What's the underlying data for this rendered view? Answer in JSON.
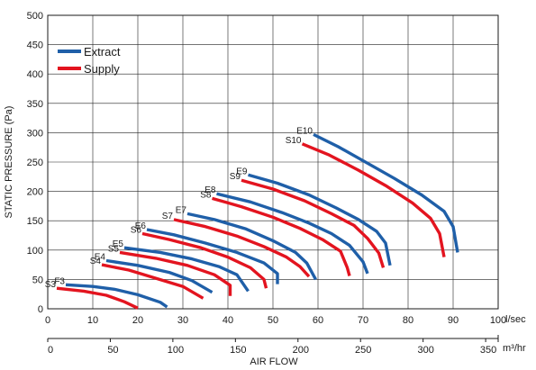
{
  "chart_data": {
    "type": "line",
    "ylabel": "STATIC PRESSURE (Pa)",
    "xlabel": "AIR FLOW",
    "x_unit_primary": "l/sec",
    "x_unit_secondary": "m³/hr",
    "xlim": [
      0,
      100
    ],
    "ylim": [
      0,
      500
    ],
    "secondary_xlim": [
      0,
      360
    ],
    "x_ticks": [
      "0",
      "10",
      "20",
      "30",
      "40",
      "50",
      "60",
      "70",
      "80",
      "90",
      "100"
    ],
    "y_ticks": [
      "0",
      "50",
      "100",
      "150",
      "200",
      "250",
      "300",
      "350",
      "400",
      "450",
      "500"
    ],
    "secondary_ticks": [
      "0",
      "50",
      "100",
      "150",
      "200",
      "250",
      "300",
      "350"
    ],
    "grid": true,
    "legend_position": "top-left",
    "legend": [
      {
        "name": "Extract",
        "color": "#1f5fa8"
      },
      {
        "name": "Supply",
        "color": "#e3141f"
      }
    ],
    "series": [
      {
        "name": "F3",
        "kind": "Extract",
        "points": [
          [
            4,
            41
          ],
          [
            10,
            38
          ],
          [
            15,
            33
          ],
          [
            20,
            24
          ],
          [
            25,
            11
          ],
          [
            26.5,
            3
          ]
        ]
      },
      {
        "name": "S3",
        "kind": "Supply",
        "points": [
          [
            2,
            35
          ],
          [
            8,
            30
          ],
          [
            13,
            23
          ],
          [
            17,
            12
          ],
          [
            20,
            1
          ]
        ]
      },
      {
        "name": "E4",
        "kind": "Extract",
        "points": [
          [
            13,
            82
          ],
          [
            20,
            74
          ],
          [
            27,
            62
          ],
          [
            32,
            48
          ],
          [
            36.5,
            28
          ]
        ]
      },
      {
        "name": "S4",
        "kind": "Supply",
        "points": [
          [
            12,
            75
          ],
          [
            18,
            66
          ],
          [
            24,
            52
          ],
          [
            30,
            38
          ],
          [
            34.5,
            18
          ]
        ]
      },
      {
        "name": "E5",
        "kind": "Extract",
        "points": [
          [
            17,
            104
          ],
          [
            25,
            96
          ],
          [
            32,
            85
          ],
          [
            38,
            72
          ],
          [
            42,
            58
          ],
          [
            44.5,
            30
          ]
        ]
      },
      {
        "name": "S5",
        "kind": "Supply",
        "points": [
          [
            16,
            96
          ],
          [
            24,
            86
          ],
          [
            31,
            74
          ],
          [
            37,
            58
          ],
          [
            40.5,
            40
          ],
          [
            40.5,
            22
          ]
        ]
      },
      {
        "name": "E6",
        "kind": "Extract",
        "points": [
          [
            22,
            135
          ],
          [
            28,
            126
          ],
          [
            35,
            112
          ],
          [
            42,
            96
          ],
          [
            48,
            78
          ],
          [
            51,
            60
          ],
          [
            51,
            42
          ]
        ]
      },
      {
        "name": "S6",
        "kind": "Supply",
        "points": [
          [
            21,
            128
          ],
          [
            27,
            118
          ],
          [
            34,
            104
          ],
          [
            40,
            88
          ],
          [
            45,
            70
          ],
          [
            48,
            50
          ],
          [
            48.5,
            35
          ]
        ]
      },
      {
        "name": "E7",
        "kind": "Extract",
        "points": [
          [
            31,
            162
          ],
          [
            37,
            152
          ],
          [
            44,
            136
          ],
          [
            50,
            116
          ],
          [
            55,
            96
          ],
          [
            57.5,
            78
          ],
          [
            59.5,
            50
          ]
        ]
      },
      {
        "name": "S7",
        "kind": "Supply",
        "points": [
          [
            28,
            152
          ],
          [
            35,
            140
          ],
          [
            42,
            124
          ],
          [
            48,
            106
          ],
          [
            53,
            88
          ],
          [
            56,
            72
          ],
          [
            58,
            55
          ]
        ]
      },
      {
        "name": "E8",
        "kind": "Extract",
        "points": [
          [
            37.5,
            196
          ],
          [
            45,
            182
          ],
          [
            52,
            164
          ],
          [
            58,
            146
          ],
          [
            63,
            128
          ],
          [
            67,
            108
          ],
          [
            70,
            80
          ],
          [
            71,
            60
          ]
        ]
      },
      {
        "name": "S8",
        "kind": "Supply",
        "points": [
          [
            36.5,
            188
          ],
          [
            43,
            174
          ],
          [
            50,
            156
          ],
          [
            56,
            137
          ],
          [
            61,
            118
          ],
          [
            65,
            98
          ],
          [
            66.5,
            70
          ],
          [
            67,
            56
          ]
        ]
      },
      {
        "name": "E9",
        "kind": "Extract",
        "points": [
          [
            44.5,
            228
          ],
          [
            51,
            214
          ],
          [
            58,
            194
          ],
          [
            64,
            172
          ],
          [
            69,
            152
          ],
          [
            73,
            132
          ],
          [
            75,
            112
          ],
          [
            76,
            74
          ]
        ]
      },
      {
        "name": "S9",
        "kind": "Supply",
        "points": [
          [
            43,
            219
          ],
          [
            50,
            204
          ],
          [
            57,
            184
          ],
          [
            63,
            162
          ],
          [
            68,
            142
          ],
          [
            71,
            120
          ],
          [
            73.5,
            95
          ],
          [
            74.5,
            70
          ]
        ]
      },
      {
        "name": "E10",
        "kind": "Extract",
        "points": [
          [
            59,
            297
          ],
          [
            64.5,
            276
          ],
          [
            71,
            248
          ],
          [
            77,
            222
          ],
          [
            83,
            194
          ],
          [
            88,
            166
          ],
          [
            90,
            140
          ],
          [
            91,
            96
          ]
        ]
      },
      {
        "name": "S10",
        "kind": "Supply",
        "points": [
          [
            56.5,
            281
          ],
          [
            62.5,
            262
          ],
          [
            69,
            236
          ],
          [
            75,
            210
          ],
          [
            81,
            180
          ],
          [
            85,
            154
          ],
          [
            87,
            128
          ],
          [
            88,
            88
          ]
        ]
      }
    ]
  }
}
